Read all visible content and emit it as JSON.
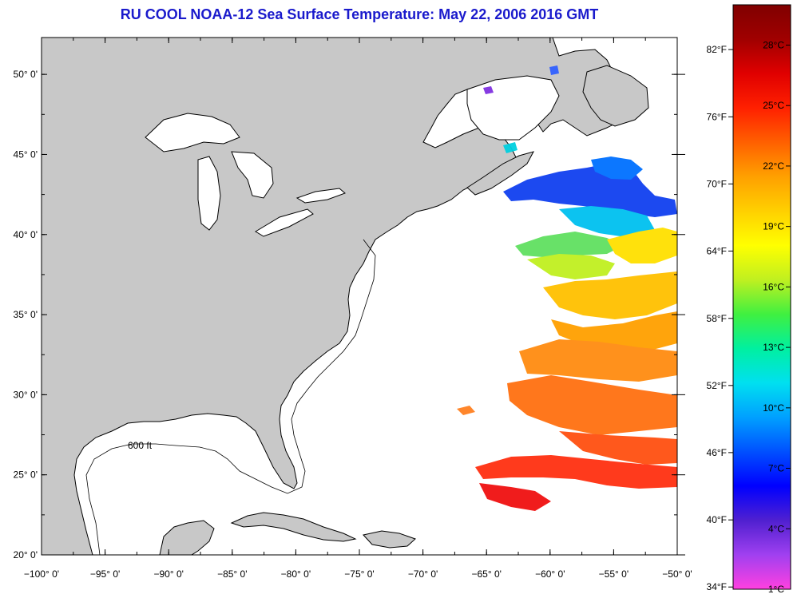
{
  "title": "RU COOL  NOAA-12  Sea Surface Temperature:  May 22, 2006 2016 GMT",
  "map": {
    "lon_range": [
      -100,
      -50
    ],
    "lat_range": [
      20,
      52.3
    ],
    "lon_ticks": [
      "−100° 0'",
      "−95° 0'",
      "−90° 0'",
      "−85° 0'",
      "−80° 0'",
      "−75° 0'",
      "−70° 0'",
      "−65° 0'",
      "−60° 0'",
      "−55° 0'",
      "−50° 0'"
    ],
    "lon_tick_values": [
      -100,
      -95,
      -90,
      -85,
      -80,
      -75,
      -70,
      -65,
      -60,
      -55,
      -50
    ],
    "lat_ticks": [
      "20° 0'",
      "25° 0'",
      "30° 0'",
      "35° 0'",
      "40° 0'",
      "45° 0'",
      "50° 0'"
    ],
    "lat_tick_values": [
      20,
      25,
      30,
      35,
      40,
      45,
      50
    ],
    "isobath_label": "600 ft",
    "colors": {
      "land": "#c8c8c8",
      "ocean_no_data": "#ffffff",
      "coast": "#000000",
      "title": "#1a1acc"
    }
  },
  "colorbar": {
    "range_c": [
      1,
      30
    ],
    "fahrenheit_labels": [
      "82°F",
      "76°F",
      "70°F",
      "64°F",
      "58°F",
      "52°F",
      "46°F",
      "40°F",
      "34°F"
    ],
    "fahrenheit_values_c": [
      27.78,
      24.44,
      21.11,
      17.78,
      14.44,
      11.11,
      7.78,
      4.44,
      1.11
    ],
    "celsius_labels": [
      "28°C",
      "25°C",
      "22°C",
      "19°C",
      "16°C",
      "13°C",
      "10°C",
      "7°C",
      "4°C",
      "1°C"
    ],
    "celsius_values": [
      28,
      25,
      22,
      19,
      16,
      13,
      10,
      7,
      4,
      1
    ],
    "gradient": [
      "#ff40e0",
      "#a040f0",
      "#5020d0",
      "#0000ff",
      "#0050ff",
      "#00a0ff",
      "#00e0f0",
      "#00f0a0",
      "#40f040",
      "#c0f020",
      "#ffff00",
      "#ffd000",
      "#ffa000",
      "#ff6000",
      "#ff2000",
      "#e00000",
      "#a00000",
      "#800000"
    ]
  }
}
